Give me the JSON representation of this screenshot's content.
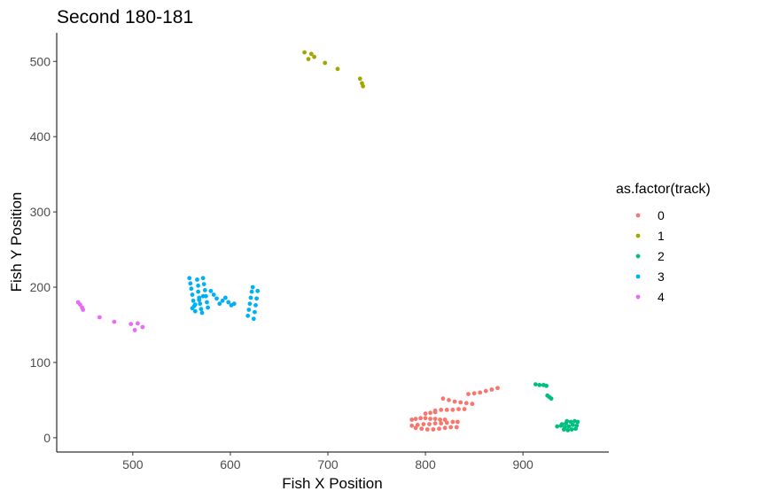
{
  "chart_data": {
    "type": "scatter",
    "title": "Second 180-181",
    "xlabel": "Fish X Position",
    "ylabel": "Fish Y Position",
    "xlim": [
      422,
      988
    ],
    "ylim": [
      -19,
      538
    ],
    "xticks": [
      500,
      600,
      700,
      800,
      900
    ],
    "yticks": [
      0,
      100,
      200,
      300,
      400,
      500
    ],
    "grid": false,
    "legend": {
      "title": "as.factor(track)",
      "position": "right",
      "entries": [
        "0",
        "1",
        "2",
        "3",
        "4"
      ]
    },
    "series": [
      {
        "name": "0",
        "color": "#F8766D",
        "points": [
          [
            786,
            24
          ],
          [
            790,
            25
          ],
          [
            795,
            26
          ],
          [
            800,
            26
          ],
          [
            805,
            25
          ],
          [
            810,
            25
          ],
          [
            815,
            24
          ],
          [
            820,
            24
          ],
          [
            786,
            16
          ],
          [
            792,
            17
          ],
          [
            798,
            18
          ],
          [
            804,
            18
          ],
          [
            810,
            19
          ],
          [
            816,
            19
          ],
          [
            822,
            20
          ],
          [
            828,
            21
          ],
          [
            833,
            21
          ],
          [
            790,
            13
          ],
          [
            796,
            12
          ],
          [
            802,
            11
          ],
          [
            808,
            11
          ],
          [
            814,
            12
          ],
          [
            820,
            13
          ],
          [
            826,
            14
          ],
          [
            832,
            14
          ],
          [
            810,
            36
          ],
          [
            816,
            37
          ],
          [
            822,
            37
          ],
          [
            828,
            37
          ],
          [
            834,
            38
          ],
          [
            840,
            38
          ],
          [
            800,
            32
          ],
          [
            805,
            33
          ],
          [
            810,
            34
          ],
          [
            818,
            52
          ],
          [
            824,
            50
          ],
          [
            830,
            48
          ],
          [
            836,
            47
          ],
          [
            842,
            46
          ],
          [
            848,
            45
          ],
          [
            844,
            58
          ],
          [
            850,
            59
          ],
          [
            856,
            60
          ],
          [
            862,
            62
          ],
          [
            868,
            64
          ],
          [
            874,
            66
          ]
        ]
      },
      {
        "name": "1",
        "color": "#A3A500",
        "points": [
          [
            676,
            512
          ],
          [
            680,
            503
          ],
          [
            683,
            510
          ],
          [
            686,
            506
          ],
          [
            697,
            498
          ],
          [
            710,
            490
          ],
          [
            733,
            477
          ],
          [
            735,
            471
          ],
          [
            736,
            467
          ]
        ]
      },
      {
        "name": "2",
        "color": "#00BF7D",
        "points": [
          [
            913,
            71
          ],
          [
            917,
            70
          ],
          [
            921,
            70
          ],
          [
            924,
            69
          ],
          [
            925,
            56
          ],
          [
            927,
            54
          ],
          [
            929,
            52
          ],
          [
            935,
            15
          ],
          [
            939,
            16
          ],
          [
            943,
            14
          ],
          [
            947,
            15
          ],
          [
            951,
            17
          ],
          [
            955,
            16
          ],
          [
            945,
            22
          ],
          [
            949,
            21
          ],
          [
            953,
            22
          ],
          [
            956,
            21
          ],
          [
            942,
            11
          ],
          [
            946,
            10
          ],
          [
            950,
            11
          ],
          [
            954,
            12
          ],
          [
            940,
            18
          ],
          [
            944,
            19
          ]
        ]
      },
      {
        "name": "3",
        "color": "#00B0F6",
        "points": [
          [
            558,
            212
          ],
          [
            559,
            205
          ],
          [
            560,
            198
          ],
          [
            561,
            190
          ],
          [
            562,
            182
          ],
          [
            563,
            175
          ],
          [
            564,
            168
          ],
          [
            566,
            210
          ],
          [
            567,
            202
          ],
          [
            567,
            194
          ],
          [
            568,
            186
          ],
          [
            569,
            178
          ],
          [
            570,
            171
          ],
          [
            571,
            166
          ],
          [
            572,
            212
          ],
          [
            573,
            204
          ],
          [
            574,
            196
          ],
          [
            575,
            188
          ],
          [
            576,
            180
          ],
          [
            577,
            173
          ],
          [
            580,
            195
          ],
          [
            583,
            190
          ],
          [
            586,
            185
          ],
          [
            589,
            178
          ],
          [
            592,
            182
          ],
          [
            595,
            186
          ],
          [
            598,
            180
          ],
          [
            601,
            176
          ],
          [
            604,
            178
          ],
          [
            618,
            162
          ],
          [
            619,
            170
          ],
          [
            620,
            178
          ],
          [
            621,
            186
          ],
          [
            622,
            194
          ],
          [
            623,
            200
          ],
          [
            624,
            158
          ],
          [
            625,
            167
          ],
          [
            626,
            176
          ],
          [
            627,
            185
          ],
          [
            628,
            195
          ],
          [
            561,
            172
          ],
          [
            564,
            177
          ],
          [
            568,
            183
          ],
          [
            572,
            188
          ]
        ]
      },
      {
        "name": "4",
        "color": "#E76BF3",
        "points": [
          [
            444,
            180
          ],
          [
            446,
            177
          ],
          [
            448,
            173
          ],
          [
            449,
            170
          ],
          [
            466,
            160
          ],
          [
            481,
            154
          ],
          [
            498,
            151
          ],
          [
            502,
            143
          ],
          [
            505,
            152
          ],
          [
            510,
            147
          ]
        ]
      }
    ]
  }
}
